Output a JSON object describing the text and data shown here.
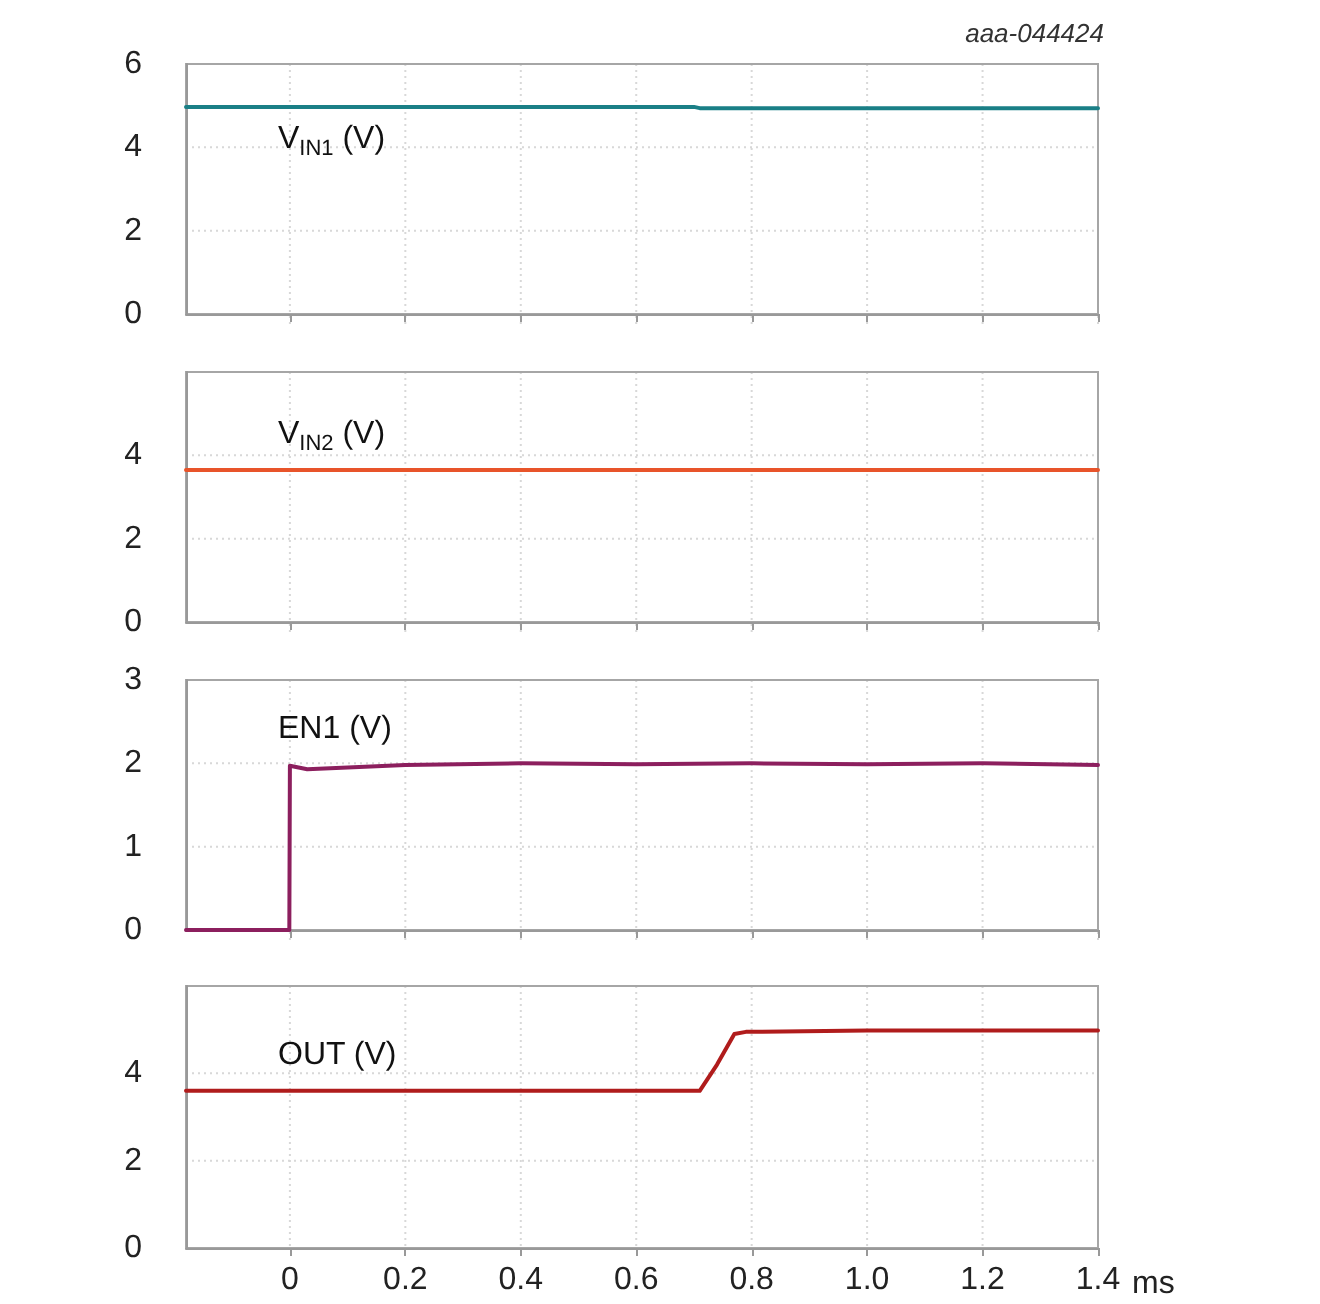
{
  "chart_data": [
    {
      "type": "line",
      "annotations": [
        "aaa-044424"
      ],
      "xlim": [
        -0.18,
        1.4
      ],
      "xticks": [
        0,
        0.2,
        0.4,
        0.6,
        0.8,
        1,
        1.2,
        1.4
      ],
      "ylim": [
        0,
        6
      ],
      "yticks": [
        0,
        2,
        4,
        6
      ],
      "grid": true,
      "tick_labels": "y",
      "x": [
        -0.18,
        0.2,
        0.5,
        0.7,
        0.71,
        1.0,
        1.4
      ],
      "series": [
        {
          "name": "V$_{IN1}$ (V)",
          "color": "#1a7f86",
          "values": [
            4.97,
            4.97,
            4.97,
            4.97,
            4.94,
            4.94,
            4.94
          ]
        }
      ]
    },
    {
      "type": "line",
      "xlim": [
        -0.18,
        1.4
      ],
      "xticks": [
        0,
        0.2,
        0.4,
        0.6,
        0.8,
        1,
        1.2,
        1.4
      ],
      "ylim": [
        0,
        6
      ],
      "yticks": [
        0,
        2,
        4,
        {
          "value": 6,
          "label": null
        }
      ],
      "grid": true,
      "tick_labels": "y",
      "x": [
        -0.18,
        0.2,
        0.6,
        1.0,
        1.4
      ],
      "series": [
        {
          "name": "V$_{IN2}$ (V)",
          "color": "#e8542a",
          "values": [
            3.65,
            3.65,
            3.65,
            3.65,
            3.65
          ]
        }
      ]
    },
    {
      "type": "line",
      "xlim": [
        -0.18,
        1.4
      ],
      "xticks": [
        0,
        0.2,
        0.4,
        0.6,
        0.8,
        1,
        1.2,
        1.4
      ],
      "ylim": [
        0,
        3
      ],
      "yticks": [
        0,
        1,
        2,
        3
      ],
      "grid": true,
      "tick_labels": "y",
      "x": [
        -0.18,
        -0.001,
        0,
        0.03,
        0.1,
        0.2,
        0.4,
        0.6,
        0.8,
        1.0,
        1.2,
        1.4
      ],
      "series": [
        {
          "name": "EN1 (V)",
          "color": "#8c1f5e",
          "values": [
            0,
            0,
            1.97,
            1.93,
            1.95,
            1.98,
            2.0,
            1.99,
            2.0,
            1.99,
            2.0,
            1.98
          ]
        }
      ]
    },
    {
      "type": "line",
      "xlabel": "ms",
      "xlim": [
        -0.18,
        1.4
      ],
      "xticks": [
        0,
        0.2,
        0.4,
        0.6,
        0.8,
        {
          "value": 1,
          "label": "1.0"
        },
        1.2,
        1.4
      ],
      "ylim": [
        0,
        6
      ],
      "yticks": [
        0,
        2,
        4,
        {
          "value": 6,
          "label": null
        }
      ],
      "grid": true,
      "x": [
        -0.18,
        0.2,
        0.5,
        0.71,
        0.74,
        0.77,
        0.79,
        1.0,
        1.4
      ],
      "series": [
        {
          "name": "OUT (V)",
          "color": "#b01c1c",
          "values": [
            3.6,
            3.6,
            3.6,
            3.6,
            4.2,
            4.9,
            4.95,
            4.98,
            4.98
          ]
        }
      ]
    }
  ]
}
